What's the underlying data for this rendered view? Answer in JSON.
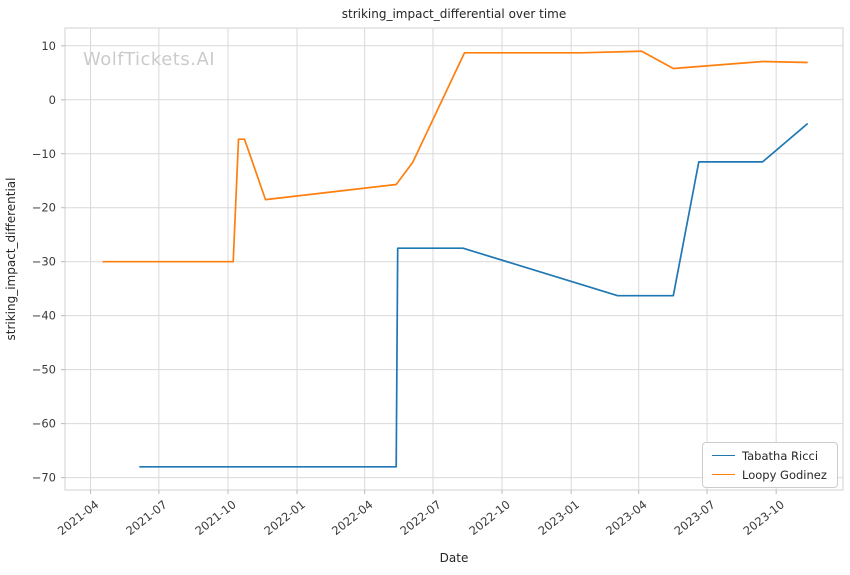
{
  "watermark": {
    "text": "WolfTickets.AI",
    "color": "#cbcbcb"
  },
  "chart_data": {
    "type": "line",
    "title": "striking_impact_differential over time",
    "xlabel": "Date",
    "ylabel": "striking_impact_differential",
    "grid": true,
    "legend_position": "lower right",
    "background": "#ffffff",
    "grid_color": "#d9d9d9",
    "tick_label_color": "#3b3b3b",
    "x_ticks": [
      {
        "label": "2021-04",
        "date": "2021-04-01"
      },
      {
        "label": "2021-07",
        "date": "2021-07-01"
      },
      {
        "label": "2021-10",
        "date": "2021-10-01"
      },
      {
        "label": "2022-01",
        "date": "2022-01-01"
      },
      {
        "label": "2022-04",
        "date": "2022-04-01"
      },
      {
        "label": "2022-07",
        "date": "2022-07-01"
      },
      {
        "label": "2022-10",
        "date": "2022-10-01"
      },
      {
        "label": "2023-01",
        "date": "2023-01-01"
      },
      {
        "label": "2023-04",
        "date": "2023-04-01"
      },
      {
        "label": "2023-07",
        "date": "2023-07-01"
      },
      {
        "label": "2023-10",
        "date": "2023-10-01"
      }
    ],
    "y_ticks": [
      10,
      0,
      -10,
      -20,
      -30,
      -40,
      -50,
      -60,
      -70
    ],
    "x_range": [
      "2021-02-26",
      "2023-12-29"
    ],
    "y_range": [
      -72.3,
      13.3
    ],
    "series": [
      {
        "name": "Tabatha Ricci",
        "color": "#1f77b4",
        "points": [
          [
            "2021-06-05",
            -68
          ],
          [
            "2022-05-13",
            -68
          ],
          [
            "2022-05-15",
            -27.5
          ],
          [
            "2022-08-10",
            -27.5
          ],
          [
            "2023-03-04",
            -36.3
          ],
          [
            "2023-05-17",
            -36.3
          ],
          [
            "2023-06-20",
            -11.5
          ],
          [
            "2023-09-13",
            -11.5
          ],
          [
            "2023-11-12",
            -4.4
          ]
        ]
      },
      {
        "name": "Loopy Godinez",
        "color": "#ff7f0e",
        "points": [
          [
            "2021-04-17",
            -30
          ],
          [
            "2021-10-08",
            -30
          ],
          [
            "2021-10-15",
            -7.3
          ],
          [
            "2021-10-23",
            -7.3
          ],
          [
            "2021-11-20",
            -18.5
          ],
          [
            "2022-05-13",
            -15.7
          ],
          [
            "2022-06-04",
            -11.6
          ],
          [
            "2022-08-12",
            8.7
          ],
          [
            "2023-01-14",
            8.7
          ],
          [
            "2023-04-05",
            9.0
          ],
          [
            "2023-05-17",
            5.8
          ],
          [
            "2023-09-13",
            7.1
          ],
          [
            "2023-11-12",
            6.9
          ]
        ]
      }
    ]
  }
}
